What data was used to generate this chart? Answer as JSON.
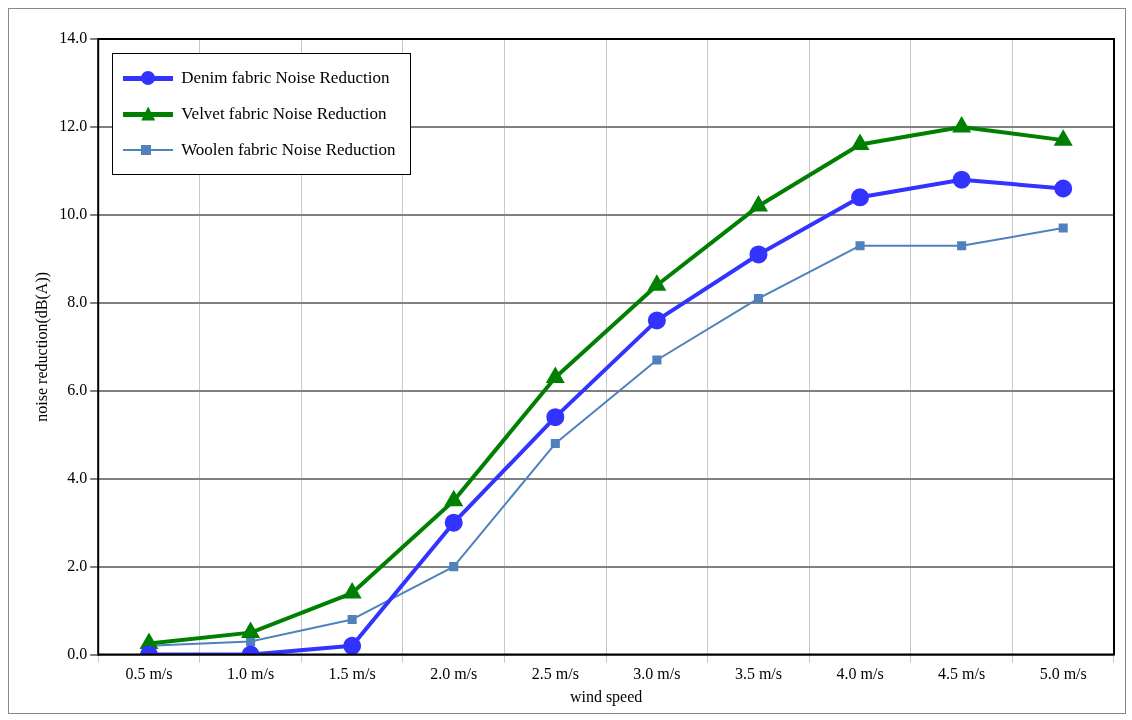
{
  "chart_data": {
    "type": "line",
    "xlabel": "wind speed",
    "ylabel": "noise reduction(dB(A))",
    "categories": [
      "0.5 m/s",
      "1.0 m/s",
      "1.5 m/s",
      "2.0 m/s",
      "2.5 m/s",
      "3.0 m/s",
      "3.5 m/s",
      "4.0 m/s",
      "4.5 m/s",
      "5.0 m/s"
    ],
    "series": [
      {
        "name": "Denim fabric Noise Reduction",
        "color": "#3333ff",
        "marker": "circle",
        "values": [
          0.0,
          0.0,
          0.2,
          3.0,
          5.4,
          7.6,
          9.1,
          10.4,
          10.8,
          10.6
        ]
      },
      {
        "name": "Velvet fabric Noise Reduction",
        "color": "#008000",
        "marker": "triangle",
        "values": [
          0.25,
          0.5,
          1.4,
          3.5,
          6.3,
          8.4,
          10.2,
          11.6,
          12.0,
          11.7
        ]
      },
      {
        "name": "Woolen fabric Noise Reduction",
        "color": "#4f81bd",
        "marker": "square",
        "values": [
          0.2,
          0.3,
          0.8,
          2.0,
          4.8,
          6.7,
          8.1,
          9.3,
          9.3,
          9.7
        ]
      }
    ],
    "ylim": [
      0,
      14
    ],
    "yticks": [
      {
        "value": 0,
        "label": "0.0"
      },
      {
        "value": 2,
        "label": "2.0"
      },
      {
        "value": 4,
        "label": "4.0"
      },
      {
        "value": 6,
        "label": "6.0"
      },
      {
        "value": 8,
        "label": "8.0"
      },
      {
        "value": 10,
        "label": "10.0"
      },
      {
        "value": 12,
        "label": "12.0"
      },
      {
        "value": 14,
        "label": "14.0"
      }
    ],
    "grid": true,
    "legend": "top left",
    "line_style": "solid"
  }
}
